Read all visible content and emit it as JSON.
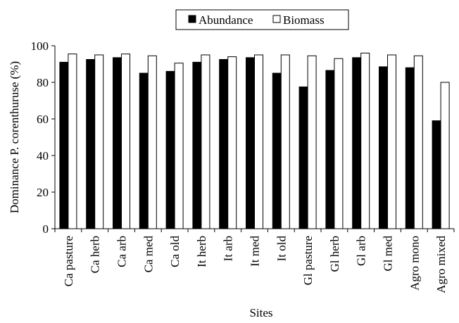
{
  "chart_data": {
    "type": "bar",
    "xlabel": "Sites",
    "ylabel": "Dominance P. corenthuruse (%)",
    "categories": [
      "Ca pasture",
      "Ca herb",
      "Ca arb",
      "Ca med",
      "Ca old",
      "It herb",
      "It arb",
      "It med",
      "It old",
      "Gl pasture",
      "Gl herb",
      "Gl arb",
      "Gl med",
      "Agro mono",
      "Agro mixed"
    ],
    "series": [
      {
        "name": "Abundance",
        "color": "#000000",
        "values": [
          91,
          92.5,
          93.5,
          85,
          86,
          91,
          92.5,
          93.5,
          85,
          77.5,
          86.5,
          93.5,
          88.5,
          88,
          59
        ]
      },
      {
        "name": "Biomass",
        "color": "#ffffff",
        "values": [
          95.5,
          95,
          95.5,
          94.5,
          90.5,
          95,
          94,
          95,
          95,
          94.5,
          93,
          96,
          95,
          94.5,
          80
        ]
      }
    ],
    "ylim": [
      0,
      100
    ],
    "yticks": [
      0,
      20,
      40,
      60,
      80,
      100
    ],
    "grid": false,
    "legend": "top"
  }
}
